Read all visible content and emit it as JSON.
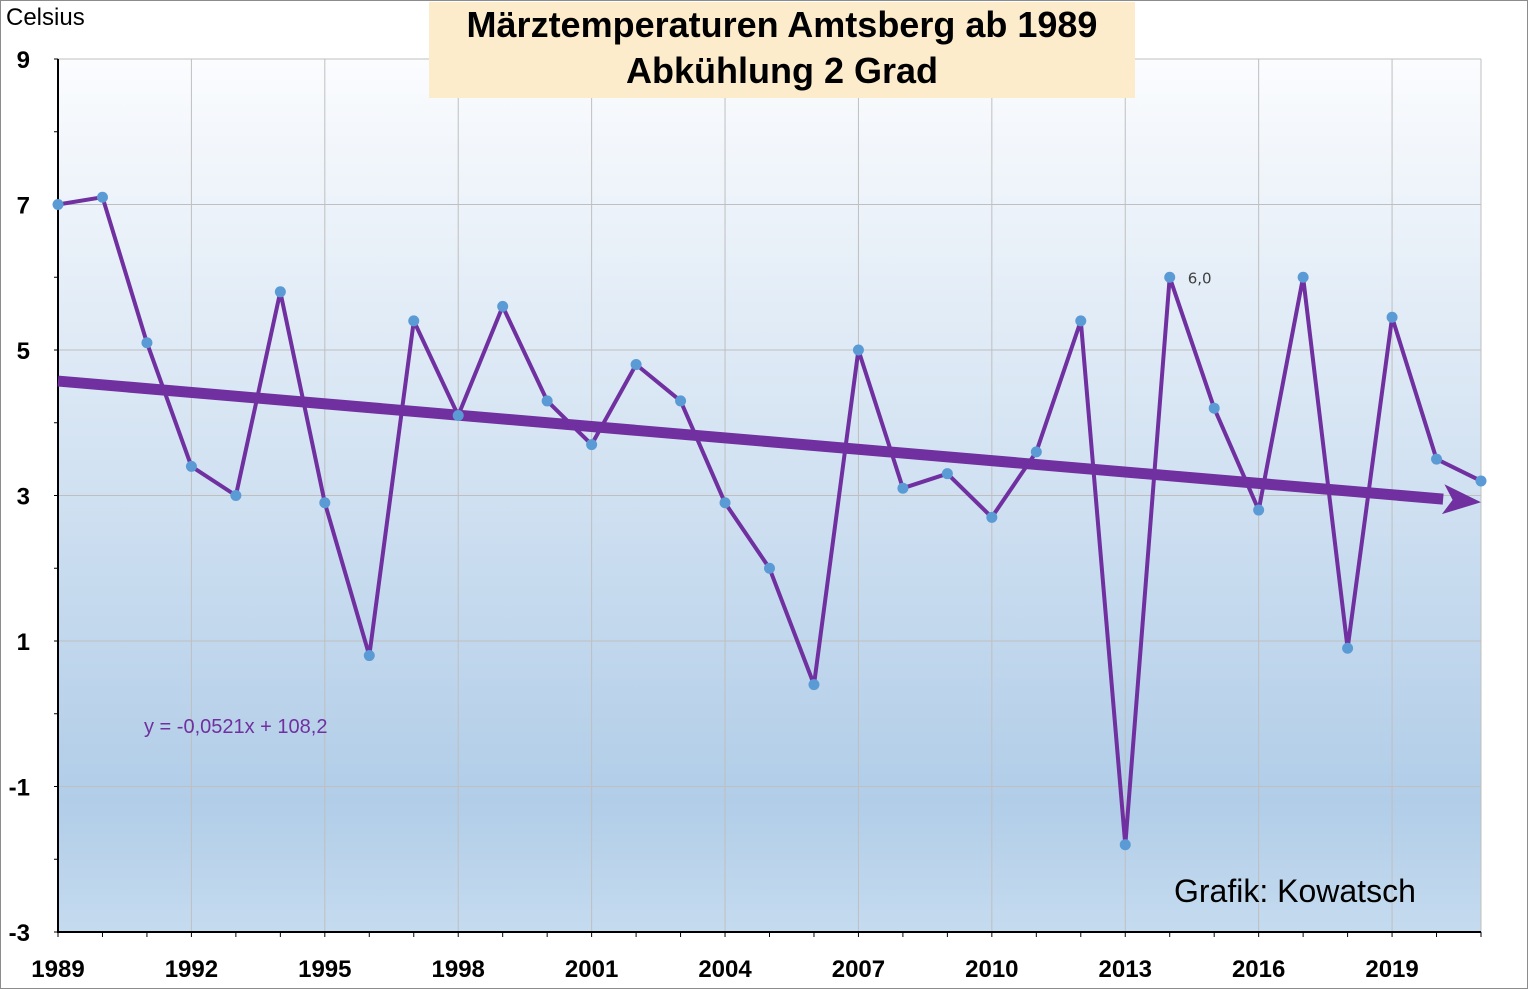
{
  "chart_data": {
    "type": "line",
    "title": [
      "Märztemperaturen Amtsberg ab 1989",
      "Abkühlung 2 Grad"
    ],
    "ylabel": "Celsius",
    "ylim": [
      -3,
      9
    ],
    "yticks": [
      "9",
      "7",
      "5",
      "3",
      "1",
      "-1",
      "-3"
    ],
    "xlim": [
      1989,
      2021
    ],
    "xticks": [
      "1989",
      "1992",
      "1995",
      "1998",
      "2001",
      "2004",
      "2007",
      "2010",
      "2013",
      "2016",
      "2019"
    ],
    "grid": true,
    "series": [
      {
        "x": [
          1989,
          1990,
          1991,
          1992,
          1993,
          1994,
          1995,
          1996,
          1997,
          1998,
          1999,
          2000,
          2001,
          2002,
          2003,
          2004,
          2005,
          2006,
          2007,
          2008,
          2009,
          2010,
          2011,
          2012,
          2013,
          2014,
          2015,
          2016,
          2017,
          2018,
          2019,
          2020,
          2021
        ],
        "values": [
          7.0,
          7.1,
          5.1,
          3.4,
          3.0,
          5.8,
          2.9,
          0.8,
          5.4,
          4.1,
          5.6,
          4.3,
          3.7,
          4.8,
          4.3,
          2.9,
          2.0,
          0.4,
          5.0,
          3.1,
          3.3,
          2.7,
          3.6,
          5.4,
          -1.8,
          6.0,
          4.2,
          2.8,
          6.0,
          0.9,
          5.45,
          3.5,
          3.2
        ],
        "line_color": "#7030a0",
        "marker_color": "#5b9bd5"
      }
    ],
    "trendline": {
      "equation": "y = -0,0521x  + 108,2",
      "slope": -0.0521,
      "intercept": 108.2,
      "color": "#7030a0"
    },
    "data_labels": [
      {
        "x": 2014,
        "y": 6.0,
        "text": "6,0"
      }
    ],
    "annotations": {
      "credit": "Grafik: Kowatsch"
    }
  }
}
